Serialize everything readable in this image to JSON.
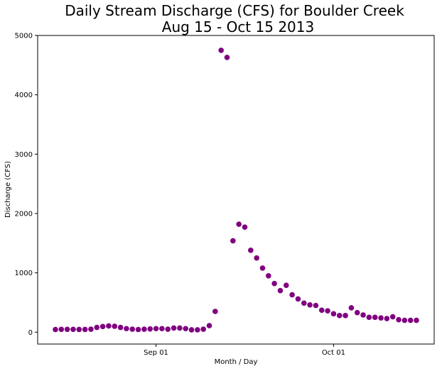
{
  "chart_data": {
    "type": "scatter",
    "title_lines": [
      "Daily Stream Discharge (CFS) for Boulder Creek",
      "Aug 15 - Oct 15 2013"
    ],
    "xlabel": "Month / Day",
    "ylabel": "Discharge (CFS)",
    "ylim": [
      -200,
      5000
    ],
    "xlim": [
      "2013-08-12",
      "2013-10-18"
    ],
    "x_ticks": [
      {
        "date": "2013-09-01",
        "label": "Sep 01"
      },
      {
        "date": "2013-10-01",
        "label": "Oct 01"
      }
    ],
    "y_ticks": [
      0,
      1000,
      2000,
      3000,
      4000,
      5000
    ],
    "grid": false,
    "marker_color": "#800080",
    "series": [
      {
        "x": [
          "2013-08-15",
          "2013-08-16",
          "2013-08-17",
          "2013-08-18",
          "2013-08-19",
          "2013-08-20",
          "2013-08-21",
          "2013-08-22",
          "2013-08-23",
          "2013-08-24",
          "2013-08-25",
          "2013-08-26",
          "2013-08-27",
          "2013-08-28",
          "2013-08-29",
          "2013-08-30",
          "2013-08-31",
          "2013-09-01",
          "2013-09-02",
          "2013-09-03",
          "2013-09-04",
          "2013-09-05",
          "2013-09-06",
          "2013-09-07",
          "2013-09-08",
          "2013-09-09",
          "2013-09-10",
          "2013-09-11",
          "2013-09-12",
          "2013-09-13",
          "2013-09-14",
          "2013-09-15",
          "2013-09-16",
          "2013-09-17",
          "2013-09-18",
          "2013-09-19",
          "2013-09-20",
          "2013-09-21",
          "2013-09-22",
          "2013-09-23",
          "2013-09-24",
          "2013-09-25",
          "2013-09-26",
          "2013-09-27",
          "2013-09-28",
          "2013-09-29",
          "2013-09-30",
          "2013-10-01",
          "2013-10-02",
          "2013-10-03",
          "2013-10-04",
          "2013-10-05",
          "2013-10-06",
          "2013-10-07",
          "2013-10-08",
          "2013-10-09",
          "2013-10-10",
          "2013-10-11",
          "2013-10-12",
          "2013-10-13",
          "2013-10-14",
          "2013-10-15"
        ],
        "y": [
          45,
          48,
          48,
          48,
          46,
          46,
          50,
          80,
          95,
          105,
          100,
          80,
          60,
          50,
          45,
          50,
          55,
          60,
          60,
          50,
          70,
          70,
          60,
          40,
          40,
          50,
          110,
          350,
          4750,
          4630,
          1540,
          1820,
          1770,
          1380,
          1250,
          1080,
          950,
          820,
          700,
          790,
          630,
          560,
          490,
          460,
          450,
          370,
          360,
          310,
          280,
          280,
          410,
          330,
          290,
          250,
          250,
          240,
          230,
          260,
          210,
          200,
          200,
          200
        ]
      }
    ]
  }
}
